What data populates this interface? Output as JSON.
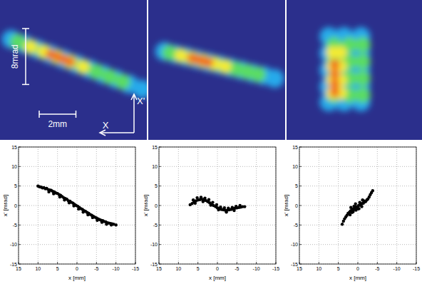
{
  "chart_data": [
    {
      "type": "image",
      "xlim": [
        4,
        -4
      ],
      "ylim": [
        -10,
        10
      ],
      "scale_bars": [
        {
          "label": "8mrad",
          "length": 8,
          "axis": "y"
        },
        {
          "label": "2mm",
          "length": 2,
          "axis": "x"
        }
      ],
      "axis_labels": {
        "x": "X",
        "y": "X'"
      },
      "spots": {
        "x": [
          3.4,
          2.69,
          1.97,
          1.26,
          0.54,
          -0.18,
          -0.89,
          -1.61,
          -2.32,
          -3.04,
          -3.75,
          3.04,
          2.33,
          1.61,
          0.9,
          0.18,
          -0.53,
          -1.25,
          -1.96,
          -2.68,
          2.33,
          1.61,
          0.9,
          0.18,
          -0.53,
          1.26,
          0.9,
          0.54,
          0.18
        ],
        "y": [
          4.4,
          3.69,
          2.97,
          2.26,
          1.54,
          0.83,
          0.11,
          -0.61,
          -1.32,
          -2.04,
          -2.75,
          4.04,
          3.33,
          2.61,
          1.9,
          1.18,
          0.47,
          -0.25,
          -0.96,
          -1.68,
          3.33,
          2.61,
          1.9,
          1.18,
          0.47,
          2.26,
          1.9,
          1.54,
          1.18
        ],
        "intensity": [
          0.3,
          0.3,
          0.3,
          0.3,
          0.3,
          0.3,
          0.3,
          0.3,
          0.3,
          0.3,
          0.3,
          0.5,
          0.5,
          0.5,
          0.5,
          0.5,
          0.5,
          0.5,
          0.5,
          0.5,
          0.7,
          0.7,
          0.7,
          0.7,
          0.7,
          0.9,
          0.9,
          0.9,
          0.9
        ]
      }
    },
    {
      "type": "image",
      "xlim": [
        4,
        -4
      ],
      "ylim": [
        -10,
        10
      ],
      "spots": {
        "x": [
          3.06,
          2.42,
          1.77,
          1.13,
          0.48,
          -0.17,
          -0.81,
          -1.46,
          -2.1,
          -2.75,
          -3.39,
          2.74,
          2.09,
          1.45,
          0.8,
          0.16,
          -0.49,
          -1.13,
          -1.78,
          -2.42,
          2.09,
          1.45,
          0.8,
          0.16,
          -0.49,
          1.45,
          1.13,
          0.8,
          0.48
        ],
        "y": [
          2.65,
          2.26,
          1.88,
          1.49,
          1.1,
          0.72,
          0.33,
          -0.06,
          -0.45,
          -0.83,
          -1.22,
          2.46,
          2.07,
          1.68,
          1.3,
          0.91,
          0.52,
          0.13,
          -0.25,
          -0.64,
          2.07,
          1.68,
          1.3,
          0.91,
          0.52,
          1.68,
          1.49,
          1.3,
          1.1
        ],
        "intensity": [
          0.3,
          0.3,
          0.3,
          0.3,
          0.3,
          0.3,
          0.3,
          0.3,
          0.3,
          0.3,
          0.3,
          0.5,
          0.5,
          0.5,
          0.5,
          0.5,
          0.5,
          0.5,
          0.5,
          0.5,
          0.7,
          0.7,
          0.7,
          0.7,
          0.7,
          0.9,
          0.9,
          0.9,
          0.9
        ]
      }
    },
    {
      "type": "image",
      "xlim": [
        4,
        -4
      ],
      "ylim": [
        -10,
        10
      ],
      "spots": {
        "x": [
          1.5,
          1.5,
          1.5,
          1.5,
          1.5,
          0.6,
          0.6,
          0.6,
          0.6,
          0.6,
          -0.4,
          -0.4,
          -0.4,
          -0.4,
          -0.4,
          1.2,
          1.2,
          1.2,
          1.2,
          0.3,
          0.3,
          0.3,
          0.3,
          -0.5,
          -0.5,
          -0.5,
          -0.5,
          1.3,
          1.3,
          1.3,
          1.3,
          0.8,
          0.8,
          0.8,
          0.8,
          1.15,
          1.15,
          1.15,
          1.15
        ],
        "y": [
          4.8,
          2.4,
          0,
          -2.4,
          -4.6,
          4.8,
          2.4,
          0,
          -2.4,
          -4.6,
          4.8,
          2.4,
          0,
          -2.4,
          -4.6,
          3.6,
          1.2,
          -1.2,
          -3.6,
          3.6,
          1.2,
          -1.2,
          -3.6,
          3.6,
          1.2,
          -1.2,
          -3.6,
          2.5,
          0.5,
          -1.5,
          -3.3,
          2.5,
          0.5,
          -1.5,
          -3.3,
          0.8,
          -0.6,
          -2.0,
          -3.2
        ],
        "intensity": [
          0.3,
          0.3,
          0.3,
          0.3,
          0.3,
          0.3,
          0.3,
          0.3,
          0.3,
          0.3,
          0.3,
          0.3,
          0.3,
          0.3,
          0.3,
          0.5,
          0.5,
          0.5,
          0.5,
          0.5,
          0.5,
          0.5,
          0.5,
          0.5,
          0.5,
          0.5,
          0.5,
          0.7,
          0.7,
          0.7,
          0.7,
          0.7,
          0.7,
          0.7,
          0.7,
          0.9,
          0.9,
          0.9,
          0.9
        ]
      }
    },
    {
      "type": "scatter",
      "xlabel": "x [mm]",
      "ylabel": "x' [mrad]",
      "xlim": [
        15,
        -15
      ],
      "ylim": [
        -15,
        15
      ],
      "xticks": [
        15,
        10,
        5,
        0,
        -5,
        -10,
        -15
      ],
      "yticks": [
        -15,
        -10,
        -5,
        0,
        5,
        10,
        15
      ],
      "grid": true,
      "color": "#000000",
      "marker": "circle",
      "x": [
        10,
        9.6,
        9.2,
        8.8,
        8.5,
        8.1,
        7.8,
        7.4,
        7.0,
        6.6,
        6.2,
        5.8,
        5.4,
        5.0,
        4.6,
        4.2,
        3.8,
        3.4,
        3.0,
        2.6,
        2.2,
        1.8,
        1.4,
        1.0,
        0.6,
        0.2,
        -0.2,
        -0.6,
        -1.0,
        -1.4,
        -1.8,
        -2.2,
        -2.6,
        -3.0,
        -3.4,
        -3.8,
        -4.2,
        -4.6,
        -5.0,
        -5.4,
        -5.8,
        -6.2,
        -6.6,
        -7.0,
        -7.4,
        -7.8,
        -8.2,
        -8.6,
        -9.0,
        -9.4,
        -10,
        7.2,
        6.0,
        4.4,
        3.2,
        2.0,
        0.8,
        -0.4,
        -1.6,
        -2.8,
        -4.0,
        -5.2,
        -6.4,
        -7.6,
        -8.8
      ],
      "y": [
        5.0,
        4.8,
        4.7,
        4.5,
        4.6,
        4.3,
        4.4,
        4.1,
        4.0,
        3.9,
        3.6,
        3.5,
        3.2,
        3.1,
        2.8,
        2.6,
        2.3,
        2.0,
        1.8,
        1.6,
        1.2,
        1.1,
        0.8,
        0.6,
        0.3,
        0.0,
        -0.2,
        -0.5,
        -0.8,
        -1.0,
        -1.3,
        -1.5,
        -1.8,
        -2.0,
        -2.3,
        -2.5,
        -2.8,
        -3.0,
        -3.2,
        -3.4,
        -3.6,
        -3.8,
        -3.9,
        -4.1,
        -4.2,
        -4.4,
        -4.5,
        -4.6,
        -4.7,
        -4.8,
        -5.0,
        3.5,
        3.0,
        2.2,
        1.4,
        0.7,
        -0.1,
        -0.9,
        -1.7,
        -2.4,
        -3.1,
        -3.8,
        -4.3,
        -4.8,
        -5.0
      ]
    },
    {
      "type": "scatter",
      "xlabel": "x [mm]",
      "ylabel": "x' [mrad]",
      "xlim": [
        15,
        -15
      ],
      "ylim": [
        -15,
        15
      ],
      "xticks": [
        15,
        10,
        5,
        0,
        -5,
        -10,
        -15
      ],
      "yticks": [
        -15,
        -10,
        -5,
        0,
        5,
        10,
        15
      ],
      "grid": true,
      "color": "#000000",
      "marker": "circle",
      "x": [
        7.0,
        6.5,
        6.0,
        5.5,
        5.0,
        4.5,
        4.0,
        3.5,
        3.0,
        2.5,
        2.0,
        1.5,
        1.0,
        0.5,
        0.0,
        -0.5,
        -1.0,
        -1.5,
        -2.0,
        -2.5,
        -3.0,
        -3.5,
        -4.0,
        -4.5,
        -5.0,
        -5.5,
        -6.0,
        -6.5,
        -7.0,
        6.2,
        5.2,
        4.2,
        3.2,
        2.2,
        1.2,
        0.2,
        -0.8,
        -1.8,
        -2.8,
        -3.8,
        -4.8,
        -5.8,
        5.7,
        3.7,
        1.7,
        -0.3,
        -2.3,
        -4.3
      ],
      "y": [
        0.2,
        0.5,
        0.9,
        1.2,
        1.4,
        1.5,
        1.6,
        1.5,
        1.3,
        1.0,
        0.7,
        0.3,
        0.0,
        -0.3,
        -0.6,
        -0.8,
        -1.0,
        -1.1,
        -1.2,
        -1.2,
        -1.1,
        -1.0,
        -0.9,
        -0.7,
        -0.6,
        -0.5,
        -0.4,
        -0.3,
        -0.3,
        1.4,
        2.0,
        2.1,
        1.9,
        1.5,
        0.8,
        0.2,
        -0.4,
        -0.6,
        -0.7,
        -0.5,
        -0.2,
        0.0,
        0.6,
        1.0,
        0.1,
        -1.1,
        -1.7,
        -1.3
      ]
    },
    {
      "type": "scatter",
      "xlabel": "x [mm]",
      "ylabel": "x' [mrad]",
      "xlim": [
        15,
        -15
      ],
      "ylim": [
        -15,
        15
      ],
      "xticks": [
        15,
        10,
        5,
        0,
        -5,
        -10,
        -15
      ],
      "yticks": [
        -15,
        -10,
        -5,
        0,
        5,
        10,
        15
      ],
      "grid": true,
      "color": "#000000",
      "marker": "circle",
      "x": [
        4.0,
        3.7,
        3.4,
        3.1,
        2.8,
        2.5,
        2.2,
        1.9,
        1.6,
        1.3,
        1.0,
        0.7,
        0.4,
        0.1,
        -0.2,
        -0.5,
        -0.8,
        -1.1,
        -1.4,
        -1.7,
        -2.0,
        -2.3,
        -2.6,
        -2.9,
        -3.2,
        -3.5,
        -3.8,
        2.0,
        1.5,
        1.0,
        0.5,
        0.0,
        -0.5,
        -1.0,
        -1.5,
        1.8,
        1.2,
        0.6,
        -0.3,
        -1.2
      ],
      "y": [
        -4.8,
        -4.0,
        -3.4,
        -2.9,
        -2.5,
        -2.0,
        -1.8,
        -1.4,
        -1.2,
        -0.9,
        -1.0,
        -0.6,
        -0.3,
        -0.5,
        0.0,
        0.2,
        0.1,
        0.5,
        0.6,
        0.9,
        1.0,
        1.4,
        1.7,
        2.2,
        2.8,
        3.3,
        3.8,
        -2.4,
        -1.8,
        -0.2,
        -1.2,
        -0.9,
        0.8,
        -0.3,
        1.2,
        -0.5,
        -1.6,
        0.4,
        -0.8,
        1.4
      ]
    }
  ]
}
